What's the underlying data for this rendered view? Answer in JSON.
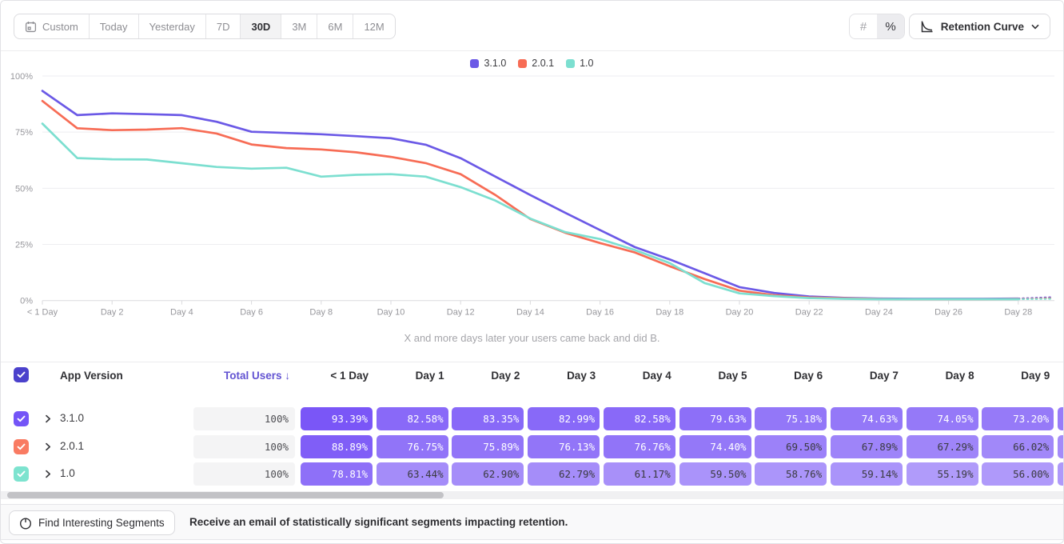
{
  "toolbar": {
    "date_ranges": [
      {
        "label": "Custom",
        "selected": false
      },
      {
        "label": "Today",
        "selected": false
      },
      {
        "label": "Yesterday",
        "selected": false
      },
      {
        "label": "7D",
        "selected": false
      },
      {
        "label": "30D",
        "selected": true
      },
      {
        "label": "3M",
        "selected": false
      },
      {
        "label": "6M",
        "selected": false
      },
      {
        "label": "12M",
        "selected": false
      }
    ],
    "value_format": {
      "number_label": "#",
      "percent_label": "%",
      "selected": "%"
    },
    "chart_type_label": "Retention Curve"
  },
  "chart_data": {
    "type": "line",
    "caption": "X and more days later your users came back and did B.",
    "x_tick_labels": [
      "< 1 Day",
      "Day 2",
      "Day 4",
      "Day 6",
      "Day 8",
      "Day 10",
      "Day 12",
      "Day 14",
      "Day 16",
      "Day 18",
      "Day 20",
      "Day 22",
      "Day 24",
      "Day 26",
      "Day 28"
    ],
    "y_tick_labels": [
      "0%",
      "25%",
      "50%",
      "75%",
      "100%"
    ],
    "ylim": [
      0,
      100
    ],
    "x_unit": "day",
    "dashed_tail_from_day": 28,
    "series": [
      {
        "name": "3.1.0",
        "color": "#6b59e6",
        "values": [
          93.39,
          82.58,
          83.35,
          82.99,
          82.58,
          79.63,
          75.18,
          74.63,
          74.05,
          73.2,
          72.3,
          69.4,
          63.4,
          55.2,
          47.0,
          39.1,
          31.4,
          23.8,
          18.3,
          12.2,
          6.0,
          3.4,
          1.8,
          1.2,
          0.9,
          0.8,
          0.8,
          0.8,
          0.9,
          1.5
        ]
      },
      {
        "name": "2.0.1",
        "color": "#f76c55",
        "values": [
          88.89,
          76.75,
          75.89,
          76.13,
          76.76,
          74.4,
          69.5,
          67.89,
          67.29,
          66.02,
          64.0,
          61.2,
          56.3,
          47.0,
          36.3,
          30.2,
          25.6,
          21.4,
          15.3,
          9.6,
          4.4,
          2.4,
          1.4,
          1.0,
          0.7,
          0.6,
          0.6,
          0.6,
          0.7,
          1.1
        ]
      },
      {
        "name": "1.0",
        "color": "#7cdfd0",
        "values": [
          78.81,
          63.44,
          62.9,
          62.79,
          61.17,
          59.5,
          58.76,
          59.14,
          55.19,
          56.0,
          56.3,
          55.2,
          50.5,
          44.5,
          36.5,
          30.5,
          27.4,
          22.5,
          16.7,
          7.8,
          3.2,
          2.0,
          1.1,
          0.8,
          0.6,
          0.6,
          0.6,
          0.6,
          0.6,
          0.8
        ]
      }
    ]
  },
  "table": {
    "columns": [
      "App Version",
      "Total Users",
      "< 1 Day",
      "Day 1",
      "Day 2",
      "Day 3",
      "Day 4",
      "Day 5",
      "Day 6",
      "Day 7",
      "Day 8",
      "Day 9"
    ],
    "sort_column": "Total Users",
    "sort_direction": "desc",
    "sort_arrow": "↓",
    "rows": [
      {
        "name": "3.1.0",
        "color": "#7455f7",
        "total": "100%",
        "cells": [
          "93.39%",
          "82.58%",
          "83.35%",
          "82.99%",
          "82.58%",
          "79.63%",
          "75.18%",
          "74.63%",
          "74.05%",
          "73.20%"
        ]
      },
      {
        "name": "2.0.1",
        "color": "#f97b62",
        "total": "100%",
        "cells": [
          "88.89%",
          "76.75%",
          "75.89%",
          "76.13%",
          "76.76%",
          "74.40%",
          "69.50%",
          "67.89%",
          "67.29%",
          "66.02%"
        ]
      },
      {
        "name": "1.0",
        "color": "#7de3cf",
        "total": "100%",
        "cells": [
          "78.81%",
          "63.44%",
          "62.90%",
          "62.79%",
          "61.17%",
          "59.50%",
          "58.76%",
          "59.14%",
          "55.19%",
          "56.00%"
        ]
      }
    ],
    "header_checkbox_color": "#4b41cc",
    "cell_base_rgb": [
      112,
      74,
      246
    ]
  },
  "footer": {
    "button_label": "Find Interesting Segments",
    "message": "Receive an email of statistically significant segments impacting retention."
  }
}
